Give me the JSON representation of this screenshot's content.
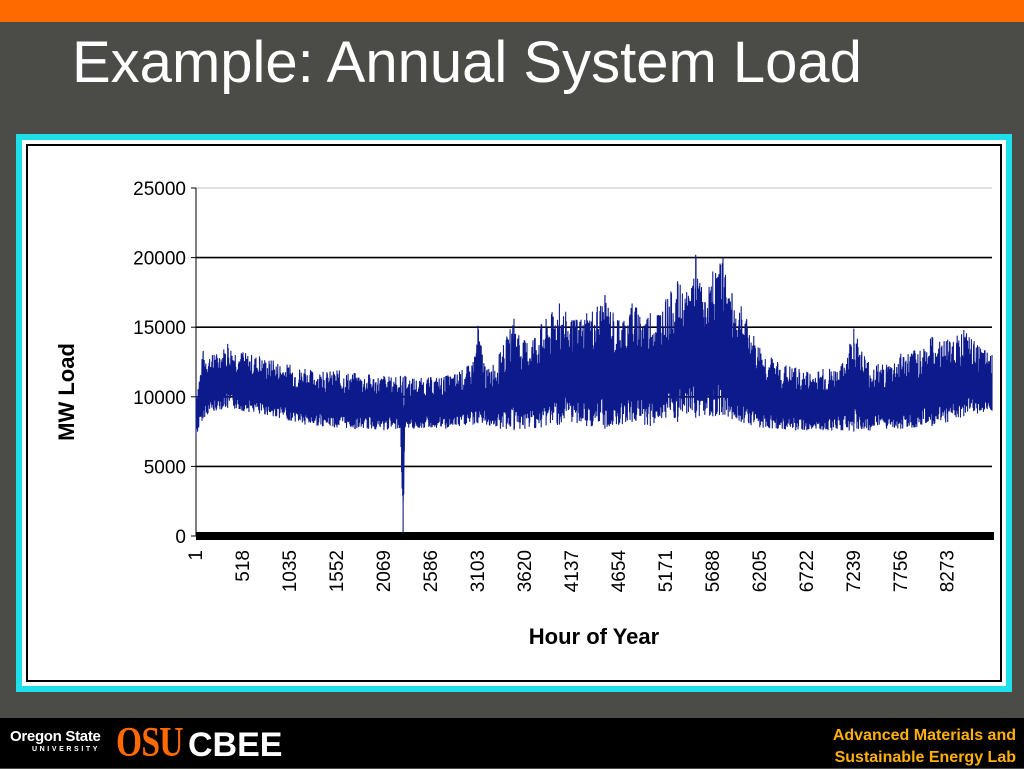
{
  "slide": {
    "title": "Example: Annual System Load"
  },
  "colors": {
    "top_bar": "#ff6a00",
    "background": "#4b4b47",
    "frame": "#1fe0ea",
    "series": "#0d1a8c",
    "footer_text": "#ffb000"
  },
  "chart_data": {
    "type": "line",
    "title": "",
    "xlabel": "Hour of Year",
    "ylabel": "MW Load",
    "ylim": [
      0,
      25000
    ],
    "yticks": [
      "0",
      "5000",
      "10000",
      "15000",
      "20000",
      "25000"
    ],
    "xticks": [
      "1",
      "518",
      "1035",
      "1552",
      "2069",
      "2586",
      "3103",
      "3620",
      "4137",
      "4654",
      "5171",
      "5688",
      "6205",
      "6722",
      "7239",
      "7756",
      "8273"
    ],
    "xlim": [
      1,
      8760
    ],
    "grid": "horizontal",
    "legend": "none",
    "series": [
      {
        "name": "",
        "x": [
          1,
          80,
          200,
          350,
          518,
          700,
          850,
          1035,
          1200,
          1400,
          1552,
          1750,
          1900,
          2069,
          2200,
          2250,
          2280,
          2300,
          2400,
          2586,
          2750,
          2900,
          3050,
          3103,
          3200,
          3350,
          3500,
          3620,
          3800,
          4000,
          4137,
          4300,
          4500,
          4654,
          4800,
          5000,
          5171,
          5300,
          5400,
          5500,
          5600,
          5688,
          5800,
          5900,
          6000,
          6205,
          6400,
          6600,
          6722,
          6900,
          7100,
          7239,
          7400,
          7600,
          7756,
          7900,
          8100,
          8273,
          8450,
          8600,
          8760
        ],
        "min": [
          7100,
          8500,
          9000,
          9200,
          9000,
          8800,
          8600,
          8300,
          8000,
          7900,
          7800,
          7700,
          7700,
          7600,
          7700,
          7800,
          0,
          7800,
          7700,
          7800,
          7700,
          7900,
          8000,
          8100,
          8000,
          7700,
          7600,
          7700,
          7800,
          8000,
          8200,
          7900,
          7700,
          8000,
          8200,
          7900,
          8500,
          8200,
          8800,
          8500,
          8700,
          8600,
          8700,
          8400,
          8200,
          7800,
          7700,
          7600,
          7600,
          7600,
          7600,
          7500,
          7600,
          7700,
          7700,
          7800,
          7900,
          8200,
          8600,
          8800,
          9000
        ],
        "max": [
          10200,
          13300,
          13000,
          13800,
          13200,
          12900,
          12600,
          12300,
          12000,
          11800,
          11900,
          11700,
          11600,
          11500,
          11400,
          11500,
          11400,
          11500,
          11300,
          11400,
          11500,
          11800,
          12500,
          15100,
          11900,
          13200,
          15600,
          14000,
          15200,
          16700,
          15500,
          16000,
          17300,
          15500,
          16700,
          16000,
          17000,
          18300,
          17500,
          20200,
          16800,
          19000,
          20000,
          17400,
          16500,
          13500,
          12500,
          12100,
          11800,
          12000,
          12200,
          14900,
          12500,
          12300,
          13100,
          13300,
          14300,
          14100,
          14800,
          13700,
          13000
        ]
      }
    ]
  },
  "footer": {
    "university_line1": "Oregon State",
    "university_line2": "UNIVERSITY",
    "logo_text": "OSU",
    "center_label": "CBEE",
    "lab_line1": "Advanced Materials and",
    "lab_line2": "Sustainable Energy Lab"
  }
}
